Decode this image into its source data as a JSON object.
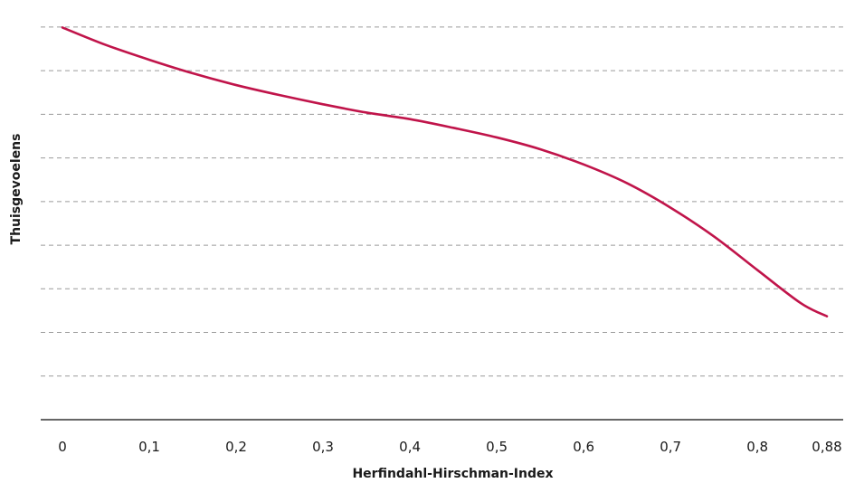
{
  "chart_data": {
    "type": "line",
    "title": "",
    "xlabel": "Herfindahl-Hirschman-Index",
    "ylabel": "Thuisgevoelens",
    "x_ticks": [
      "0",
      "0,1",
      "0,2",
      "0,3",
      "0,4",
      "0,5",
      "0,6",
      "0,7",
      "0,8",
      "0,88"
    ],
    "x_tick_values": [
      0,
      0.1,
      0.2,
      0.3,
      0.4,
      0.5,
      0.6,
      0.7,
      0.8,
      0.88
    ],
    "xlim": [
      0,
      0.88
    ],
    "ylim": [
      0,
      9.33
    ],
    "y_tick_labels_shown": false,
    "grid": "horizontal-dashed",
    "series": [
      {
        "color": "#c0144a",
        "x": [
          0,
          0.05,
          0.1,
          0.15,
          0.2,
          0.25,
          0.3,
          0.35,
          0.4,
          0.45,
          0.5,
          0.55,
          0.6,
          0.65,
          0.7,
          0.75,
          0.8,
          0.85,
          0.88
        ],
        "y": [
          8.99,
          8.59,
          8.25,
          7.94,
          7.67,
          7.44,
          7.23,
          7.04,
          6.89,
          6.69,
          6.47,
          6.2,
          5.85,
          5.42,
          4.86,
          4.2,
          3.43,
          2.67,
          2.37
        ]
      }
    ]
  }
}
